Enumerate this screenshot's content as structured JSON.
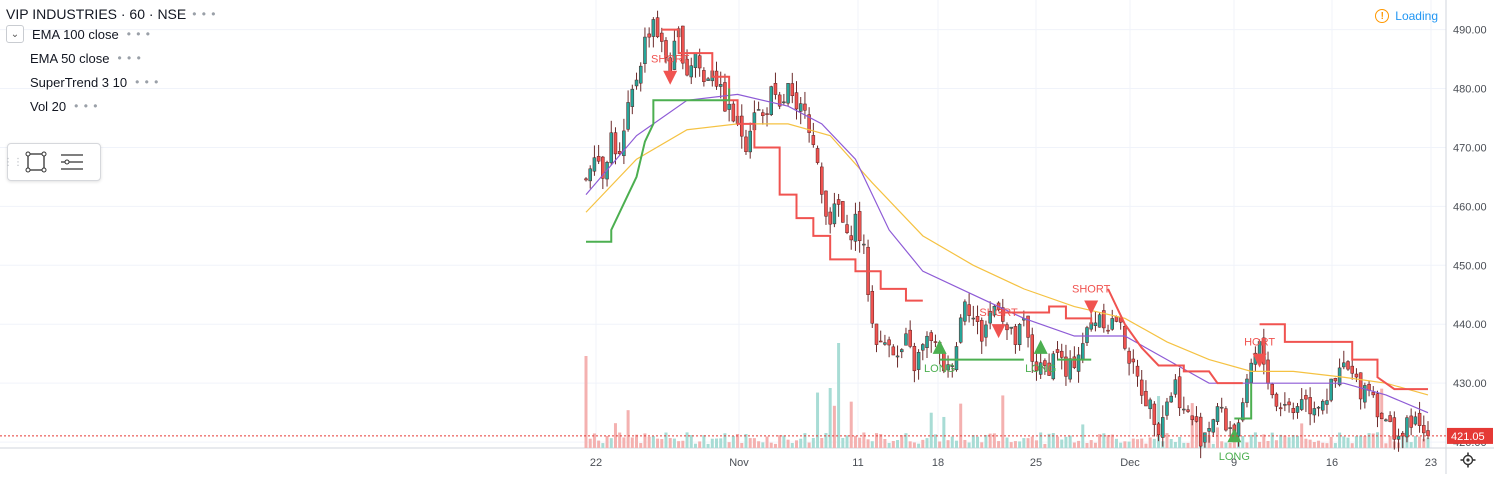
{
  "header": {
    "title": "VIP INDUSTRIES · 60 · NSE",
    "status": "Loading"
  },
  "indicators": [
    {
      "label": "EMA 100 close"
    },
    {
      "label": "EMA 50 close"
    },
    {
      "label": "SuperTrend 3 10"
    },
    {
      "label": "Vol 20"
    }
  ],
  "colors": {
    "up": "#26a69a",
    "down": "#ef5350",
    "ema_long": "#f5c242",
    "ema_short": "#8e5bd6",
    "supertrend_up": "#4caf50",
    "supertrend_down": "#f05350",
    "vol_up": "#a8dcd5",
    "vol_down": "#f4b1b0",
    "last_price": "#e53935"
  },
  "chart_data": {
    "type": "candlestick",
    "y_axis": {
      "min": 419,
      "max": 494,
      "ticks": [
        490,
        480,
        470,
        460,
        450,
        440,
        430,
        420
      ],
      "labels": [
        "490.00",
        "480.00",
        "470.00",
        "460.00",
        "450.00",
        "440.00",
        "430.00",
        "420.00"
      ]
    },
    "x_axis": {
      "labels": [
        "22",
        "Nov",
        "11",
        "18",
        "25",
        "Dec",
        "9",
        "16",
        "23"
      ]
    },
    "last_price": {
      "value": 421.05,
      "label": "421.05"
    },
    "series": {
      "close_path": [
        [
          0,
          465
        ],
        [
          2,
          470
        ],
        [
          4,
          466
        ],
        [
          6,
          472
        ],
        [
          8,
          468
        ],
        [
          10,
          476
        ],
        [
          12,
          482
        ],
        [
          14,
          488
        ],
        [
          16,
          492
        ],
        [
          18,
          487
        ],
        [
          20,
          484
        ],
        [
          22,
          489
        ],
        [
          24,
          483
        ],
        [
          26,
          486
        ],
        [
          28,
          481
        ],
        [
          30,
          484
        ],
        [
          32,
          479
        ],
        [
          34,
          476
        ],
        [
          36,
          474
        ],
        [
          38,
          471
        ],
        [
          40,
          477
        ],
        [
          42,
          475
        ],
        [
          44,
          479
        ],
        [
          46,
          476
        ],
        [
          48,
          480
        ],
        [
          50,
          475
        ],
        [
          52,
          478
        ],
        [
          54,
          470
        ],
        [
          56,
          462
        ],
        [
          58,
          458
        ],
        [
          60,
          460
        ],
        [
          62,
          454
        ],
        [
          64,
          458
        ],
        [
          66,
          452
        ],
        [
          68,
          440
        ],
        [
          70,
          436
        ],
        [
          72,
          438
        ],
        [
          74,
          434
        ],
        [
          76,
          437
        ],
        [
          78,
          433
        ],
        [
          80,
          436
        ],
        [
          82,
          438
        ],
        [
          84,
          434
        ],
        [
          86,
          432
        ],
        [
          88,
          437
        ],
        [
          90,
          445
        ],
        [
          92,
          441
        ],
        [
          94,
          438
        ],
        [
          96,
          442
        ],
        [
          98,
          444
        ],
        [
          100,
          439
        ],
        [
          102,
          437
        ],
        [
          104,
          440
        ],
        [
          106,
          434
        ],
        [
          108,
          432
        ],
        [
          110,
          433
        ],
        [
          112,
          436
        ],
        [
          114,
          431
        ],
        [
          116,
          434
        ],
        [
          118,
          437
        ],
        [
          120,
          440
        ],
        [
          122,
          442
        ],
        [
          124,
          440
        ],
        [
          126,
          441
        ],
        [
          128,
          437
        ],
        [
          130,
          432
        ],
        [
          132,
          429
        ],
        [
          134,
          426
        ],
        [
          136,
          423
        ],
        [
          138,
          427
        ],
        [
          140,
          430
        ],
        [
          142,
          425
        ],
        [
          144,
          424
        ],
        [
          146,
          421
        ],
        [
          148,
          423
        ],
        [
          150,
          426
        ],
        [
          152,
          423
        ],
        [
          154,
          422
        ],
        [
          156,
          425
        ],
        [
          158,
          433
        ],
        [
          160,
          436
        ],
        [
          162,
          431
        ],
        [
          164,
          426
        ],
        [
          166,
          427
        ],
        [
          168,
          425
        ],
        [
          170,
          428
        ],
        [
          172,
          426
        ],
        [
          174,
          427
        ],
        [
          176,
          428
        ],
        [
          178,
          430
        ],
        [
          180,
          433
        ],
        [
          182,
          431
        ],
        [
          184,
          429
        ],
        [
          186,
          430
        ],
        [
          188,
          426
        ],
        [
          190,
          423
        ],
        [
          192,
          422
        ],
        [
          194,
          421
        ],
        [
          196,
          424
        ],
        [
          198,
          422
        ],
        [
          200,
          421
        ]
      ],
      "ema_short": [
        [
          0,
          462
        ],
        [
          12,
          472
        ],
        [
          24,
          478
        ],
        [
          36,
          479
        ],
        [
          48,
          477
        ],
        [
          56,
          474
        ],
        [
          64,
          468
        ],
        [
          72,
          456
        ],
        [
          80,
          449
        ],
        [
          92,
          445
        ],
        [
          104,
          441
        ],
        [
          116,
          438
        ],
        [
          128,
          438
        ],
        [
          138,
          434
        ],
        [
          148,
          430
        ],
        [
          158,
          430
        ],
        [
          168,
          430
        ],
        [
          180,
          430
        ],
        [
          190,
          428
        ],
        [
          200,
          425
        ]
      ],
      "ema_long": [
        [
          0,
          459
        ],
        [
          12,
          468
        ],
        [
          24,
          473
        ],
        [
          36,
          474
        ],
        [
          48,
          474
        ],
        [
          58,
          472
        ],
        [
          68,
          464
        ],
        [
          80,
          455
        ],
        [
          92,
          450
        ],
        [
          104,
          446
        ],
        [
          116,
          443
        ],
        [
          128,
          441
        ],
        [
          138,
          437
        ],
        [
          148,
          434
        ],
        [
          158,
          432
        ],
        [
          168,
          432
        ],
        [
          180,
          431
        ],
        [
          190,
          430
        ],
        [
          200,
          428
        ]
      ],
      "supertrend_down": [
        [
          18,
          490
        ],
        [
          22,
          490
        ],
        [
          22,
          486
        ],
        [
          30,
          486
        ],
        [
          30,
          482
        ],
        [
          34,
          482
        ],
        [
          34,
          478
        ],
        [
          36,
          478
        ],
        [
          36,
          474
        ],
        [
          40,
          474
        ],
        [
          40,
          470
        ],
        [
          46,
          470
        ],
        [
          46,
          462
        ],
        [
          50,
          462
        ],
        [
          50,
          458
        ],
        [
          54,
          458
        ],
        [
          54,
          455
        ],
        [
          58,
          455
        ],
        [
          58,
          451
        ],
        [
          64,
          451
        ],
        [
          64,
          449
        ],
        [
          70,
          449
        ],
        [
          70,
          446
        ],
        [
          76,
          446
        ],
        [
          76,
          444
        ],
        [
          80,
          444
        ]
      ],
      "supertrend_down_2": [
        [
          98,
          442
        ],
        [
          110,
          442
        ],
        [
          110,
          443
        ],
        [
          114,
          443
        ],
        [
          114,
          441
        ],
        [
          120,
          441
        ],
        [
          120,
          440
        ]
      ],
      "supertrend_down_3": [
        [
          124,
          446
        ],
        [
          128,
          440
        ],
        [
          132,
          436
        ],
        [
          136,
          433
        ],
        [
          142,
          433
        ],
        [
          142,
          432
        ],
        [
          148,
          432
        ],
        [
          150,
          430
        ],
        [
          156,
          430
        ]
      ],
      "supertrend_down_4": [
        [
          160,
          440
        ],
        [
          166,
          440
        ],
        [
          166,
          437
        ],
        [
          182,
          437
        ],
        [
          182,
          434
        ],
        [
          188,
          434
        ],
        [
          188,
          431
        ],
        [
          192,
          429
        ],
        [
          200,
          429
        ]
      ],
      "supertrend_up": [
        [
          0,
          454
        ],
        [
          6,
          454
        ],
        [
          6,
          456
        ],
        [
          10,
          462
        ],
        [
          12,
          465
        ],
        [
          14,
          471
        ],
        [
          16,
          474
        ],
        [
          16,
          478
        ],
        [
          34,
          478
        ],
        [
          34,
          480
        ]
      ],
      "supertrend_up_2": [
        [
          84,
          434
        ],
        [
          104,
          434
        ]
      ],
      "supertrend_up_3": [
        [
          112,
          434
        ],
        [
          120,
          434
        ]
      ],
      "supertrend_up_4": [
        [
          154,
          424
        ],
        [
          158,
          424
        ],
        [
          158,
          430
        ]
      ]
    },
    "signals": [
      {
        "type": "SHORT",
        "label": "SHORT",
        "index": 20,
        "price": 482
      },
      {
        "type": "LONG",
        "label": "LONG",
        "index": 84,
        "price": 436
      },
      {
        "type": "SHORT",
        "label": "SHORT",
        "index": 98,
        "price": 439
      },
      {
        "type": "LONG",
        "label": "LONG",
        "index": 108,
        "price": 436
      },
      {
        "type": "SHORT",
        "label": "SHORT",
        "index": 120,
        "price": 443
      },
      {
        "type": "LONG",
        "label": "LONG",
        "index": 154,
        "price": 421
      },
      {
        "type": "SHORT",
        "label": "HORT",
        "index": 160,
        "price": 434
      }
    ]
  }
}
